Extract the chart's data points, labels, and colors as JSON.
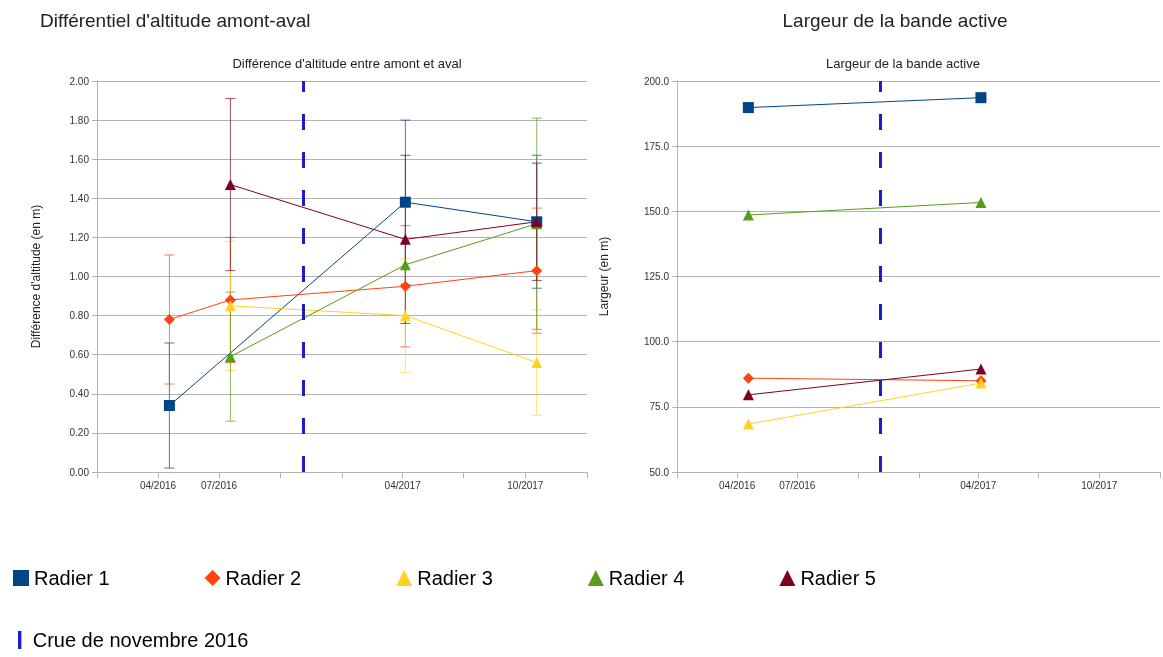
{
  "chart_data": [
    {
      "type": "line",
      "title": "Différentiel d'altitude amont-aval",
      "subtitle": "Différence d'altitude entre amont et aval",
      "ylabel": "Différence d'altitude (en m)",
      "x": [
        "2016-04-18",
        "2016-07-18",
        "2017-04-05",
        "2017-10-18"
      ],
      "xlim": [
        "2016-01",
        "2018-01"
      ],
      "xticks": [
        {
          "value": "2016-01",
          "label": null
        },
        {
          "value": "2016-04",
          "label": "04/2016"
        },
        {
          "value": "2016-07",
          "label": "07/2016"
        },
        {
          "value": "2016-10",
          "label": null
        },
        {
          "value": "2017-01",
          "label": null
        },
        {
          "value": "2017-04",
          "label": "04/2017"
        },
        {
          "value": "2017-07",
          "label": null
        },
        {
          "value": "2017-10",
          "label": "10/2017"
        },
        {
          "value": "2018-01",
          "label": null
        }
      ],
      "ylim": [
        0,
        2
      ],
      "yticks": [
        {
          "value": 0,
          "label": "0.00"
        },
        {
          "value": 0.2,
          "label": "0.20"
        },
        {
          "value": 0.4,
          "label": "0.40"
        },
        {
          "value": 0.6,
          "label": "0.60"
        },
        {
          "value": 0.8,
          "label": "0.80"
        },
        {
          "value": 1,
          "label": "1.00"
        },
        {
          "value": 1.2,
          "label": "1.20"
        },
        {
          "value": 1.4,
          "label": "1.40"
        },
        {
          "value": 1.6,
          "label": "1.60"
        },
        {
          "value": 1.8,
          "label": "1.80"
        },
        {
          "value": 2,
          "label": "2.00"
        }
      ],
      "grid": "y",
      "legend": "bottom",
      "series": [
        {
          "name": "Radier 1",
          "color": "#004586",
          "marker": "square",
          "values": [
            0.34,
            null,
            1.38,
            1.28
          ],
          "errors": [
            0.32,
            null,
            0.42,
            0.34
          ]
        },
        {
          "name": "Radier 2",
          "color": "#ff420e",
          "marker": "diamond",
          "values": [
            0.78,
            0.88,
            0.95,
            1.03
          ],
          "errors": [
            0.33,
            0.32,
            0.31,
            0.32
          ]
        },
        {
          "name": "Radier 3",
          "color": "#ffd320",
          "marker": "triangle",
          "values": [
            null,
            0.85,
            0.8,
            0.56
          ],
          "errors": [
            null,
            0.33,
            0.29,
            0.27
          ]
        },
        {
          "name": "Radier 4",
          "color": "#579d1c",
          "marker": "triangle",
          "values": [
            null,
            0.59,
            1.06,
            1.27
          ],
          "errors": [
            null,
            0.33,
            null,
            0.54
          ]
        },
        {
          "name": "Radier 5",
          "color": "#7e0021",
          "marker": "triangle",
          "values": [
            null,
            1.47,
            1.19,
            1.28
          ],
          "errors": [
            null,
            0.44,
            0.43,
            0.3
          ]
        }
      ],
      "ref_lines": [
        {
          "axis": "x",
          "value": "2016-11-03",
          "label": "Crue de novembre 2016",
          "color": "#1c1cc8",
          "line_style": "dashed"
        }
      ]
    },
    {
      "type": "line",
      "title": "Largeur de la bande active",
      "subtitle": "Largeur de la bande active",
      "ylabel": "Largeur (en m)",
      "x": [
        "2016-04-18",
        "2017-04-05"
      ],
      "xlim": [
        "2016-01",
        "2018-01"
      ],
      "xticks": [
        {
          "value": "2016-01",
          "label": null
        },
        {
          "value": "2016-04",
          "label": "04/2016"
        },
        {
          "value": "2016-07",
          "label": "07/2016"
        },
        {
          "value": "2016-10",
          "label": null
        },
        {
          "value": "2017-01",
          "label": null
        },
        {
          "value": "2017-04",
          "label": "04/2017"
        },
        {
          "value": "2017-07",
          "label": null
        },
        {
          "value": "2017-10",
          "label": "10/2017"
        },
        {
          "value": "2018-01",
          "label": null
        }
      ],
      "ylim": [
        50,
        200
      ],
      "yticks": [
        {
          "value": 50,
          "label": "50.0"
        },
        {
          "value": 75,
          "label": "75.0"
        },
        {
          "value": 100,
          "label": "100.0"
        },
        {
          "value": 125,
          "label": "125.0"
        },
        {
          "value": 150,
          "label": "150.0"
        },
        {
          "value": 175,
          "label": "175.0"
        },
        {
          "value": 200,
          "label": "200.0"
        }
      ],
      "grid": "y",
      "series": [
        {
          "color": "#004586",
          "marker": "square",
          "values": [
            189.8,
            193.6
          ]
        },
        {
          "color": "#ff420e",
          "marker": "diamond",
          "values": [
            86.0,
            85.0
          ]
        },
        {
          "color": "#ffd320",
          "marker": "triangle",
          "values": [
            68.4,
            84.1
          ]
        },
        {
          "color": "#579d1c",
          "marker": "triangle",
          "values": [
            148.6,
            153.4
          ]
        },
        {
          "color": "#7e0021",
          "marker": "triangle",
          "values": [
            79.6,
            89.5
          ]
        }
      ],
      "ref_lines": [
        {
          "axis": "x",
          "value": "2016-11-03",
          "color": "#1c1cc8",
          "line_style": "dashed"
        }
      ]
    }
  ]
}
